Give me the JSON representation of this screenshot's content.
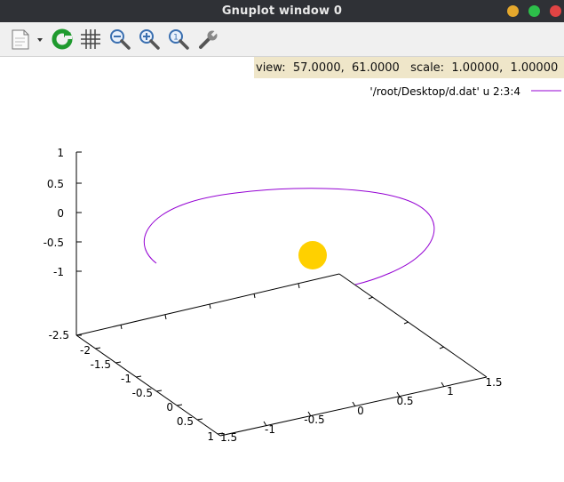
{
  "window": {
    "title": "Gnuplot window 0",
    "buttons": [
      {
        "name": "minimize",
        "color": "#e5a82d"
      },
      {
        "name": "maximize",
        "color": "#2dbf4a"
      },
      {
        "name": "close",
        "color": "#e04444"
      }
    ]
  },
  "toolbar": {
    "icons": [
      "export-icon",
      "replot-icon",
      "grid-icon",
      "zoom-out-icon",
      "zoom-in-icon",
      "zoom-fit-icon",
      "settings-icon"
    ]
  },
  "status": {
    "text": "view:  57.0000,  61.0000   scale:  1.00000,  1.00000"
  },
  "chart_data": {
    "type": "line",
    "series": [
      {
        "name": "'/root/Desktop/d.dat' u 2:3:4",
        "color": "#9400d3"
      }
    ],
    "z_ticks": [
      "1",
      "0.5",
      "0",
      "-0.5",
      "-1"
    ],
    "z_floor_label": "-2.5",
    "left_axis_ticks": [
      "-2",
      "-1.5",
      "-1",
      "-0.5",
      "0",
      "0.5",
      "1",
      "1.5"
    ],
    "right_axis_ticks": [
      "-1",
      "-0.5",
      "0",
      "0.5",
      "1",
      "1.5"
    ],
    "marker_color": "#ffd000"
  }
}
